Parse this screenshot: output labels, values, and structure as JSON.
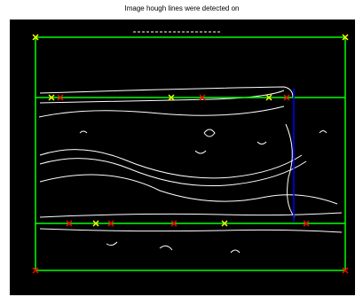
{
  "title": "Image hough lines were detected on"
}
